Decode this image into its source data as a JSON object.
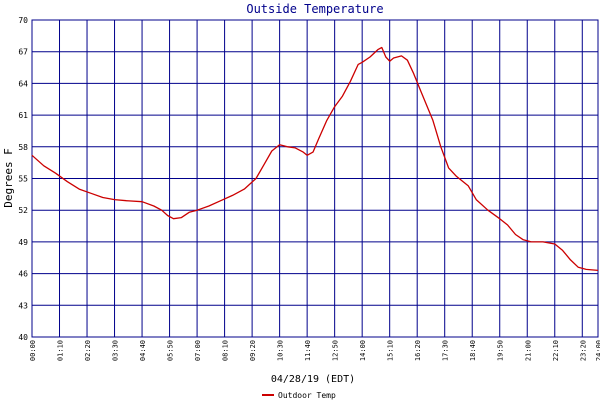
{
  "chart_data": {
    "type": "line",
    "title": "Outside Temperature",
    "xlabel": "04/28/19 (EDT)",
    "ylabel": "Degrees F",
    "ylim": [
      40,
      70
    ],
    "yticks": [
      40,
      43,
      46,
      49,
      52,
      55,
      58,
      61,
      64,
      67,
      70
    ],
    "xlim": [
      "00:00",
      "24:00"
    ],
    "xticks": [
      "00:00",
      "01:10",
      "02:20",
      "03:30",
      "04:40",
      "05:50",
      "07:00",
      "08:10",
      "09:20",
      "10:30",
      "11:40",
      "12:50",
      "14:00",
      "15:10",
      "16:20",
      "17:30",
      "18:40",
      "19:50",
      "21:00",
      "22:10",
      "23:20",
      "24:00"
    ],
    "grid": true,
    "legend_position": "bottom-left",
    "series": [
      {
        "name": "Outdoor Temp",
        "color": "#cc0000",
        "x": [
          "00:00",
          "00:30",
          "01:00",
          "01:30",
          "02:00",
          "02:30",
          "03:00",
          "03:30",
          "04:00",
          "04:40",
          "05:10",
          "05:30",
          "05:45",
          "06:00",
          "06:20",
          "06:40",
          "07:00",
          "07:30",
          "08:00",
          "08:30",
          "09:00",
          "09:30",
          "09:50",
          "10:10",
          "10:30",
          "10:50",
          "11:10",
          "11:30",
          "11:40",
          "11:55",
          "12:10",
          "12:30",
          "12:50",
          "13:10",
          "13:30",
          "13:50",
          "14:00",
          "14:20",
          "14:40",
          "14:50",
          "15:00",
          "15:10",
          "15:20",
          "15:40",
          "15:55",
          "16:10",
          "16:30",
          "17:00",
          "17:20",
          "17:40",
          "18:00",
          "18:30",
          "18:50",
          "19:20",
          "19:50",
          "20:10",
          "20:30",
          "20:50",
          "21:10",
          "21:40",
          "22:10",
          "22:30",
          "22:50",
          "23:10",
          "23:30",
          "24:00"
        ],
        "y": [
          57.2,
          56.2,
          55.5,
          54.7,
          54.0,
          53.6,
          53.2,
          53.0,
          52.9,
          52.8,
          52.4,
          52.0,
          51.5,
          51.2,
          51.3,
          51.8,
          52.0,
          52.4,
          52.9,
          53.4,
          54.0,
          55.0,
          56.3,
          57.6,
          58.2,
          58.0,
          57.9,
          57.5,
          57.2,
          57.5,
          58.8,
          60.5,
          61.8,
          62.8,
          64.2,
          65.8,
          66.0,
          66.5,
          67.2,
          67.4,
          66.5,
          66.1,
          66.4,
          66.6,
          66.2,
          65.0,
          63.2,
          60.5,
          58.0,
          56.0,
          55.2,
          54.3,
          53.0,
          52.0,
          51.2,
          50.6,
          49.7,
          49.2,
          49.0,
          49.0,
          48.8,
          48.2,
          47.3,
          46.6,
          46.4,
          46.3
        ]
      }
    ]
  }
}
